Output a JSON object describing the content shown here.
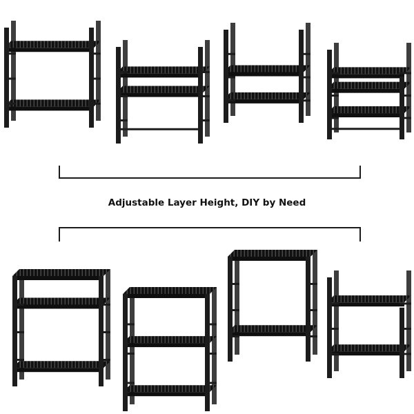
{
  "caption": "Adjustable Layer Height, DIY by Need",
  "colors": {
    "frame": "#1c1c1c",
    "slat_dark": "#0f0f0f",
    "slat_light": "#4a4a4a",
    "bracket_line": "#1a1a1a",
    "background": "#ffffff"
  },
  "top_row": [
    {
      "name": "shelf-variant-1",
      "tiers": 2
    },
    {
      "name": "shelf-variant-2",
      "tiers": 2
    },
    {
      "name": "shelf-variant-3",
      "tiers": 3
    },
    {
      "name": "shelf-variant-4",
      "tiers": 3
    }
  ],
  "bottom_row": [
    {
      "name": "shelf-variant-5",
      "tiers": 3
    },
    {
      "name": "shelf-variant-6",
      "tiers": 3
    },
    {
      "name": "shelf-variant-7",
      "tiers": 2
    },
    {
      "name": "shelf-variant-8",
      "tiers": 2
    }
  ]
}
